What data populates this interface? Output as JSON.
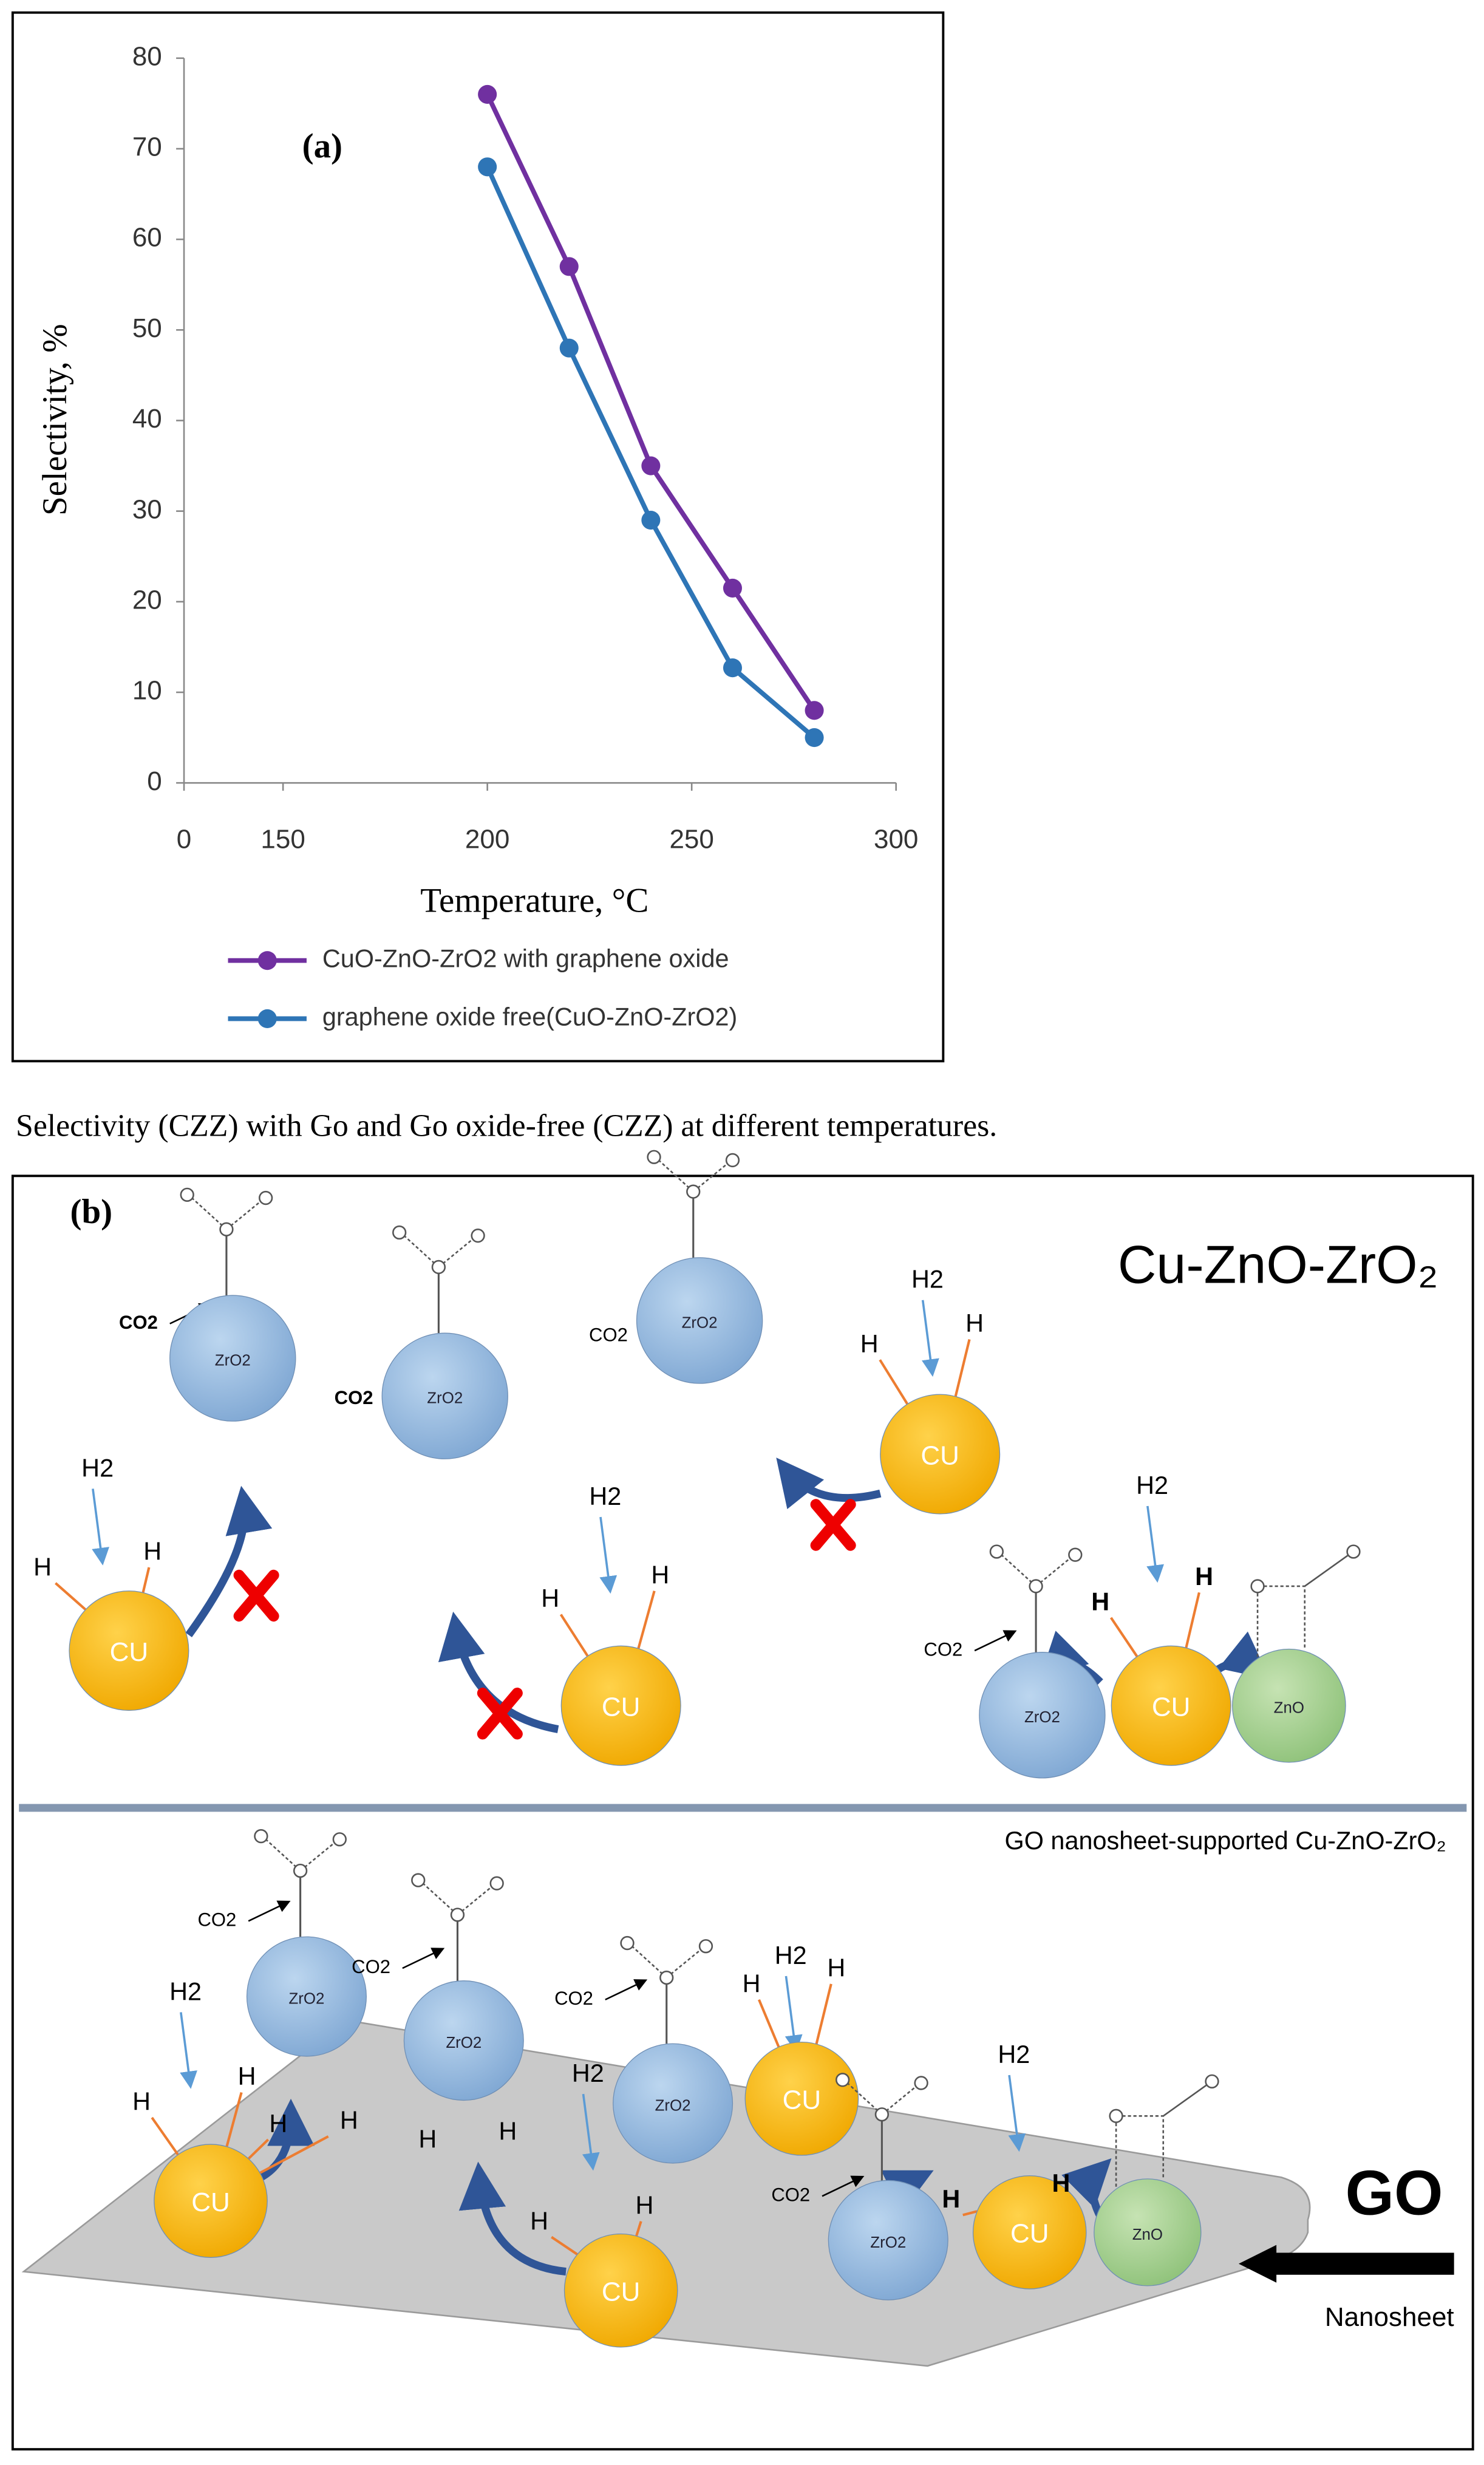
{
  "chart_data": {
    "type": "line",
    "annotation": "(a)",
    "y_label": "Selectivity, %",
    "x_label": "Temperature, °C",
    "x": [
      200,
      220,
      240,
      260,
      280
    ],
    "xlim": [
      0,
      300
    ],
    "xticks": [
      0,
      150,
      200,
      250,
      300
    ],
    "ylim": [
      0,
      80
    ],
    "yticks": [
      0,
      10,
      20,
      30,
      40,
      50,
      60,
      70,
      80
    ],
    "legend": "bottom",
    "series": [
      {
        "name": "CuO-ZnO-ZrO2 with graphene oxide",
        "color": "#7030a0",
        "values": [
          76,
          57,
          35,
          21.5,
          8
        ]
      },
      {
        "name": "graphene oxide free(CuO-ZnO-ZrO2)",
        "color": "#2e75b6",
        "values": [
          68,
          48,
          29,
          12.7,
          5
        ]
      }
    ]
  },
  "caption": "Selectivity (CZZ) with Go and Go oxide-free (CZZ) at different temperatures.",
  "diagram": {
    "label": "(b)",
    "title": "Cu-ZnO-ZrO₂",
    "subtitle": "GO nanosheet-supported Cu-ZnO-ZrO₂",
    "go": "GO",
    "nanosheet": "Nanosheet",
    "texts": [
      "CO2",
      "ZrO2",
      "H2",
      "H",
      "H",
      "CU",
      "CO2",
      "ZrO2",
      "H2",
      "H",
      "H",
      "CU",
      "CO2",
      "ZrO2",
      "H2",
      "H",
      "H",
      "CU",
      "CO2",
      "ZrO2",
      "H2",
      "H",
      "H",
      "CU",
      "ZnO",
      "CO2",
      "ZrO2",
      "H2",
      "H",
      "H",
      "CU",
      "H",
      "H",
      "CO2",
      "ZrO2",
      "H",
      "H",
      "CO2",
      "ZrO2",
      "H2",
      "H",
      "H",
      "CU",
      "H2",
      "H",
      "H",
      "CU",
      "CO2",
      "ZrO2",
      "H2",
      "H",
      "H",
      "CU",
      "ZnO"
    ]
  }
}
